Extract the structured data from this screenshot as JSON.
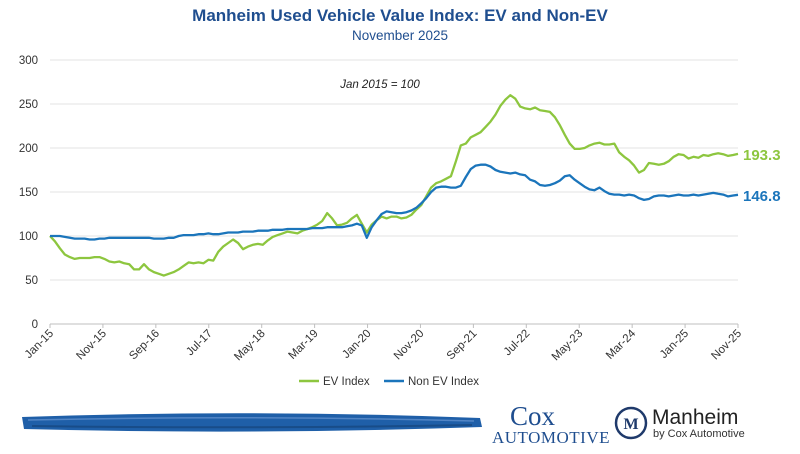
{
  "chart_data": {
    "type": "line",
    "title": "Manheim Used Vehicle Value Index: EV and Non-EV",
    "subtitle": "November 2025",
    "annotation": "Jan 2015 = 100",
    "xlabel": "",
    "ylabel": "",
    "ylim": [
      0,
      300
    ],
    "yticks": [
      0,
      50,
      100,
      150,
      200,
      250,
      300
    ],
    "yticklabels": [
      "0",
      "50",
      "100",
      "150",
      "200",
      "250",
      "300"
    ],
    "xticklabels": [
      "Jan-15",
      "Nov-15",
      "Sep-16",
      "Jul-17",
      "May-18",
      "Mar-19",
      "Jan-20",
      "Nov-20",
      "Sep-21",
      "Jul-22",
      "May-23",
      "Mar-24",
      "Jan-25",
      "Nov-25"
    ],
    "grid": "horizontal",
    "legend": "bottom-center",
    "colors": {
      "ev": "#8dc63f",
      "non_ev": "#1b75bb"
    },
    "series": [
      {
        "name": "EV Index",
        "color": "#8dc63f",
        "end_label": "193.3",
        "values": [
          100,
          94,
          86,
          79,
          76,
          74,
          75,
          75,
          75,
          76,
          76,
          74,
          71,
          70,
          71,
          69,
          68,
          62,
          62,
          68,
          62,
          59,
          57,
          55,
          57,
          59,
          62,
          66,
          70,
          69,
          70,
          69,
          73,
          72,
          82,
          88,
          92,
          96,
          92,
          85,
          88,
          90,
          91,
          90,
          95,
          99,
          101,
          103,
          105,
          104,
          103,
          106,
          108,
          110,
          113,
          117,
          126,
          120,
          112,
          113,
          115,
          120,
          124,
          114,
          104,
          113,
          118,
          122,
          120,
          122,
          122,
          120,
          121,
          124,
          130,
          135,
          145,
          155,
          160,
          162,
          165,
          168,
          185,
          203,
          205,
          212,
          215,
          218,
          224,
          230,
          238,
          248,
          255,
          260,
          256,
          247,
          245,
          244,
          246,
          243,
          242,
          241,
          235,
          226,
          215,
          205,
          199,
          199,
          200,
          203,
          205,
          206,
          204,
          204,
          205,
          195,
          190,
          186,
          180,
          172,
          175,
          183,
          182,
          181,
          182,
          185,
          190,
          193,
          192,
          188,
          190,
          189,
          192,
          191,
          193,
          194,
          193,
          191,
          192,
          193.3
        ]
      },
      {
        "name": "Non EV Index",
        "color": "#1b75bb",
        "end_label": "146.8",
        "values": [
          100,
          100,
          100,
          99,
          98,
          97,
          97,
          97,
          96,
          96,
          97,
          97,
          98,
          98,
          98,
          98,
          98,
          98,
          98,
          98,
          98,
          97,
          97,
          97,
          98,
          98,
          100,
          101,
          101,
          101,
          102,
          102,
          103,
          102,
          102,
          103,
          104,
          104,
          104,
          105,
          105,
          105,
          106,
          106,
          106,
          107,
          107,
          107,
          108,
          108,
          108,
          108,
          108,
          109,
          109,
          109,
          110,
          110,
          110,
          110,
          111,
          112,
          114,
          112,
          98,
          110,
          118,
          125,
          128,
          127,
          126,
          126,
          127,
          129,
          132,
          137,
          143,
          150,
          155,
          156,
          156,
          155,
          155,
          157,
          167,
          176,
          180,
          181,
          181,
          179,
          175,
          173,
          172,
          171,
          172,
          170,
          169,
          164,
          162,
          158,
          157,
          158,
          160,
          163,
          168,
          169,
          164,
          160,
          156,
          153,
          152,
          155,
          151,
          148,
          147,
          147,
          146,
          147,
          146,
          143,
          141,
          142,
          145,
          146,
          146,
          145,
          146,
          147,
          146,
          146,
          147,
          146,
          147,
          148,
          149,
          148,
          147,
          145,
          146,
          146.8
        ]
      }
    ]
  },
  "footer": {
    "cox_name": "Cox",
    "cox_sub": "Automotive",
    "manheim_name": "Manheim",
    "manheim_sub": "by Cox Automotive",
    "manheim_logo_letter": "M"
  }
}
